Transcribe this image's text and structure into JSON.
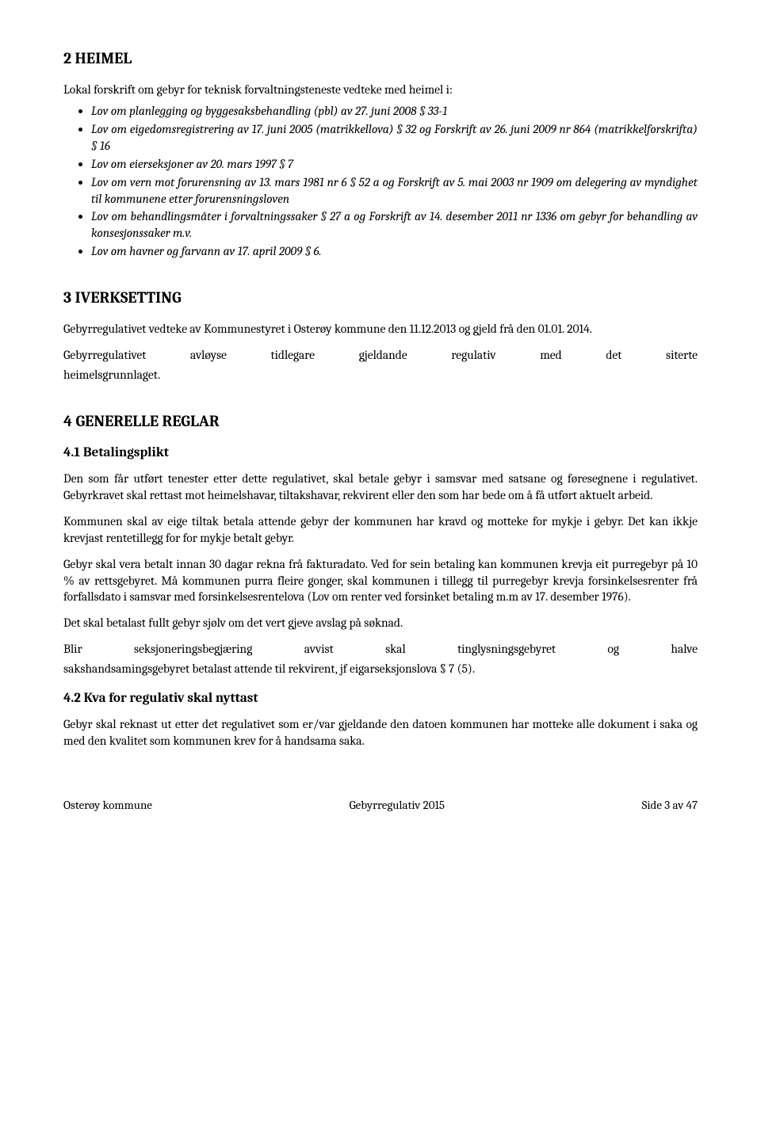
{
  "section2": {
    "heading": "2   HEIMEL",
    "intro": "Lokal forskrift om gebyr for teknisk forvaltningsteneste vedteke med heimel i:",
    "bullets": [
      "Lov om planlegging og  byggesaksbehandling (pbl) av 27. juni 2008 § 33-1",
      "Lov om eigedomsregistrering av 17. juni 2005 (matrikkellova) § 32 og Forskrift av 26. juni 2009 nr 864 (matrikkelforskrifta) § 16",
      "Lov om eierseksjoner av 20. mars 1997 § 7",
      "Lov om vern mot forurensning av 13. mars 1981 nr 6 § 52 a og Forskrift av 5. mai 2003 nr 1909 om delegering av myndighet til kommunene etter forurensningsloven",
      "Lov om behandlingsmåter i forvaltningssaker § 27 a og Forskrift av 14. desember 2011 nr 1336 om gebyr for behandling av konsesjonssaker m.v.",
      "Lov om havner og farvann av 17. april 2009 § 6."
    ]
  },
  "section3": {
    "heading": "3   IVERKSETTING",
    "p1": "Gebyrregulativet vedteke av Kommunestyret i Osterøy kommune den 11.12.2013 og gjeld frå den 01.01. 2014.",
    "p2_words": [
      "Gebyrregulativet",
      "avløyse",
      "tidlegare",
      "gjeldande",
      "regulativ",
      "med",
      "det",
      "siterte"
    ],
    "p2b": "heimelsgrunnlaget."
  },
  "section4": {
    "heading": "4   GENERELLE REGLAR",
    "sub41": {
      "heading": "4.1  Betalingsplikt",
      "p1": "Den som får utført tenester etter dette regulativet, skal betale gebyr i samsvar med satsane og føresegnene i regulativet. Gebyrkravet skal rettast mot heimelshavar, tiltakshavar, rekvirent eller den som har bede om å få utført aktuelt arbeid.",
      "p2": "Kommunen skal av eige tiltak betala attende gebyr der kommunen har kravd og motteke for mykje i gebyr. Det kan ikkje krevjast rentetillegg for for mykje betalt gebyr.",
      "p3": "Gebyr skal vera betalt innan 30 dagar rekna frå fakturadato. Ved for sein betaling kan kommunen krevja eit purregebyr på 10 % av rettsgebyret. Må kommunen purra fleire gonger, skal kommunen i tillegg til purregebyr krevja forsinkelsesrenter frå forfallsdato i samsvar med forsinkelsesrentelova (Lov om renter ved forsinket betaling m.m av 17. desember 1976).",
      "p4": "Det skal betalast fullt gebyr sjølv om det vert gjeve avslag på søknad.",
      "p5_words": [
        "Blir",
        "seksjoneringsbegjæring",
        "avvist",
        "skal",
        "tinglysningsgebyret",
        "og",
        "halve"
      ],
      "p5b": "sakshandsamingsgebyret betalast attende til rekvirent, jf eigarseksjonslova § 7 (5)."
    },
    "sub42": {
      "heading": "4.2  Kva for regulativ skal nyttast",
      "p1": "Gebyr skal reknast ut etter det regulativet som er/var gjeldande den datoen kommunen har motteke alle dokument i saka og med den kvalitet som kommunen krev for å handsama saka."
    }
  },
  "footer": {
    "left": "Osterøy kommune",
    "center": "Gebyrregulativ 2015",
    "right": "Side 3 av 47"
  },
  "style": {
    "body_font_size_pt": 12,
    "heading_font_size_pt": 15,
    "subheading_font_size_pt": 13,
    "text_color": "#000000",
    "background_color": "#ffffff",
    "italic_bullets": true
  }
}
